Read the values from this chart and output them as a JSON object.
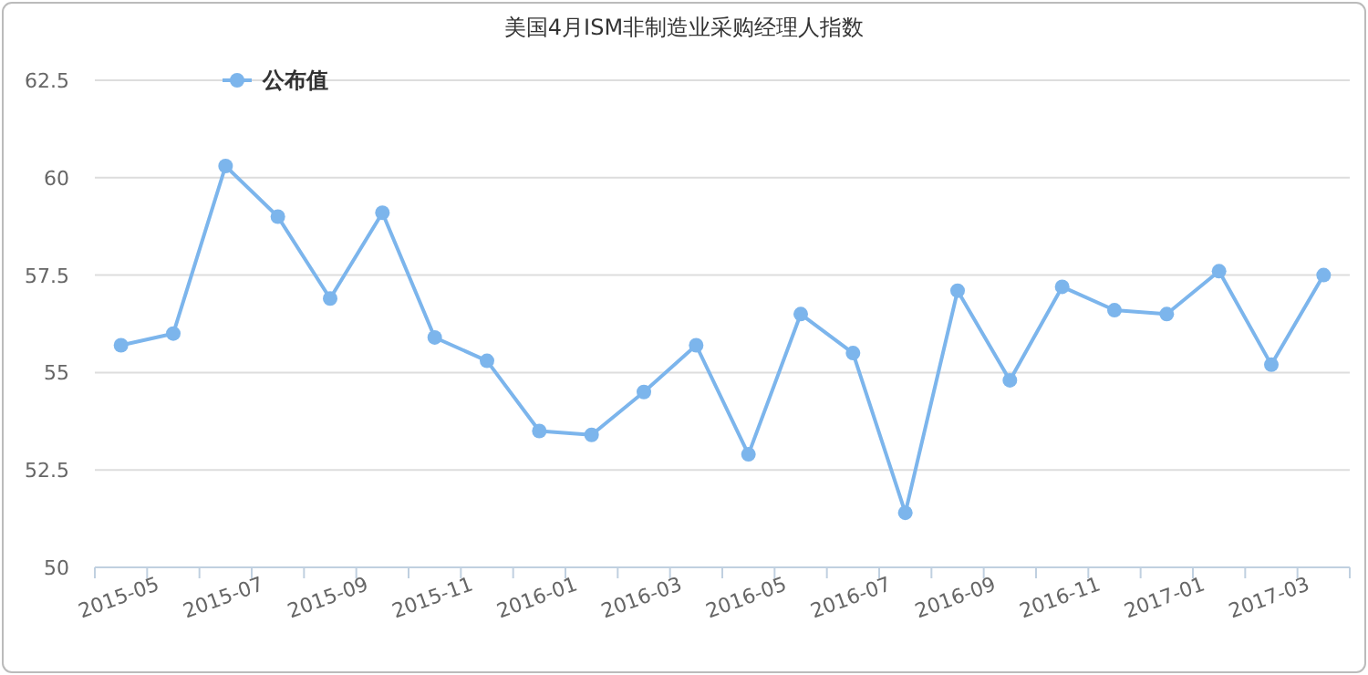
{
  "chart_data": {
    "type": "line",
    "title": "美国4月ISM非制造业采购经理人指数",
    "categories": [
      "2015-05",
      null,
      "2015-07",
      null,
      "2015-09",
      null,
      "2015-11",
      null,
      "2016-01",
      null,
      "2016-03",
      null,
      "2016-05",
      null,
      "2016-07",
      null,
      "2016-09",
      null,
      "2016-11",
      null,
      "2017-01",
      null,
      "2017-03",
      null
    ],
    "series": [
      {
        "name": "公布值",
        "color": "#7cb5ec",
        "values": [
          55.7,
          56.0,
          60.3,
          59.0,
          56.9,
          59.1,
          55.9,
          55.3,
          53.5,
          53.4,
          54.5,
          55.7,
          52.9,
          56.5,
          55.5,
          51.4,
          57.1,
          54.8,
          57.2,
          56.6,
          56.5,
          57.6,
          55.2,
          57.5
        ]
      }
    ],
    "ylim": [
      50,
      62.5
    ],
    "yticks": [
      50,
      52.5,
      55,
      57.5,
      60,
      62.5
    ],
    "grid": "y",
    "legend": "top left",
    "marker": "circle",
    "line_style": "solid"
  }
}
